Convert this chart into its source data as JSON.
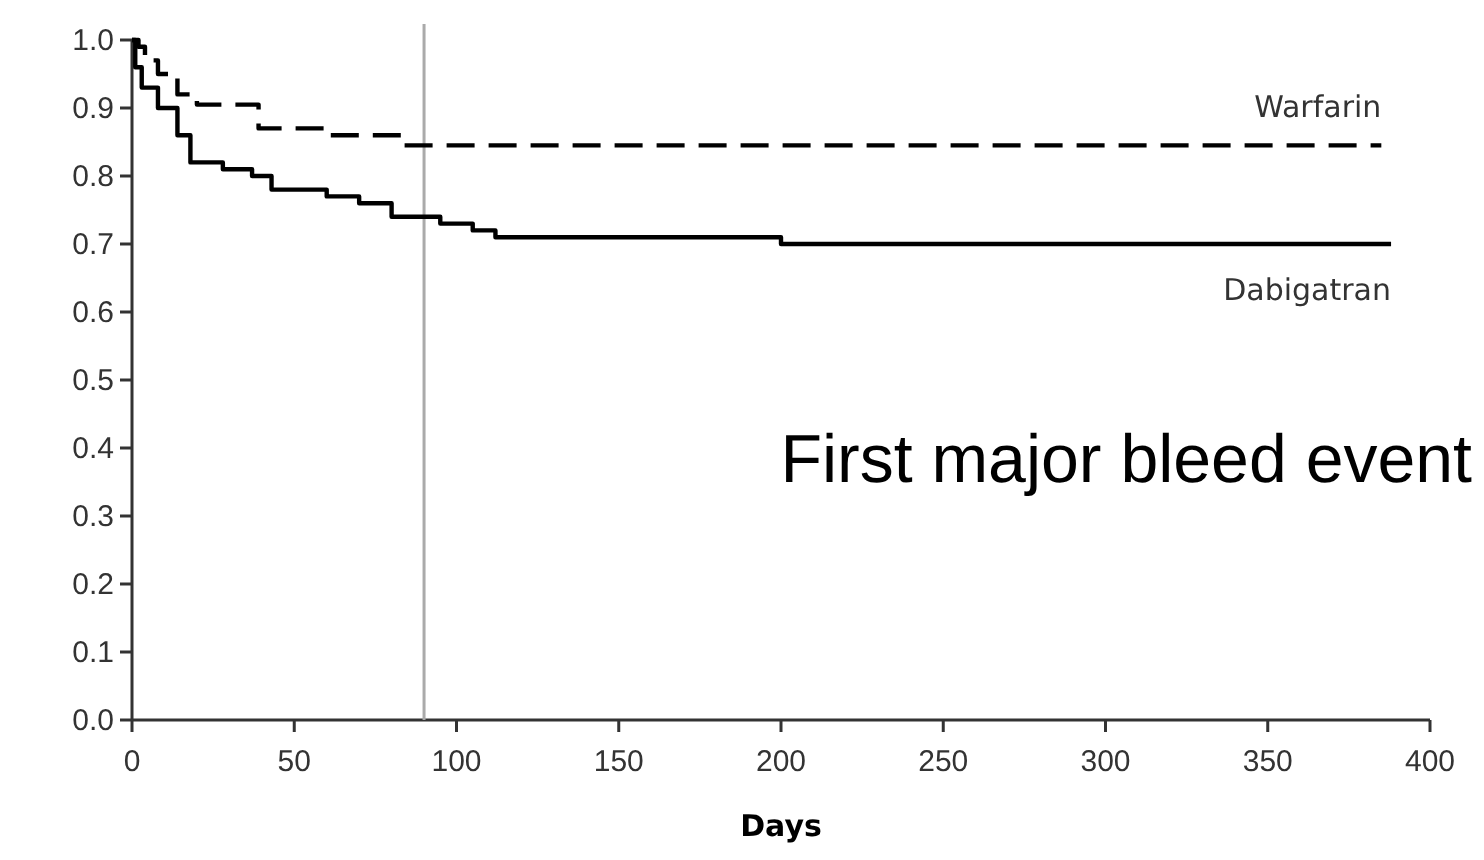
{
  "chart_data": {
    "type": "step",
    "xlabel": "Days",
    "xlim": [
      0,
      400
    ],
    "xticks": [
      0,
      50,
      100,
      150,
      200,
      250,
      300,
      350,
      400
    ],
    "ylim": [
      0,
      1.0
    ],
    "yticks": [
      {
        "value": 0,
        "label": "0.0"
      },
      0.1,
      0.2,
      0.3,
      0.4,
      0.5,
      0.6,
      0.7,
      0.8,
      0.9,
      {
        "value": 1,
        "label": "1.0"
      }
    ],
    "series": [
      {
        "name": "Warfarin",
        "color": "#000000",
        "line_style": "dashed",
        "x": [
          0,
          2,
          4,
          8,
          14,
          20,
          39,
          60,
          83,
          385
        ],
        "values": [
          1.0,
          0.99,
          0.97,
          0.95,
          0.92,
          0.905,
          0.87,
          0.86,
          0.845,
          0.845
        ]
      },
      {
        "name": "Dabigatran",
        "color": "#000000",
        "line_style": "solid",
        "x": [
          0,
          1,
          3,
          8,
          14,
          18,
          28,
          37,
          43,
          60,
          70,
          80,
          95,
          105,
          112,
          200,
          388
        ],
        "values": [
          1.0,
          0.96,
          0.93,
          0.9,
          0.86,
          0.82,
          0.81,
          0.8,
          0.78,
          0.77,
          0.76,
          0.74,
          0.73,
          0.72,
          0.71,
          0.7,
          0.7
        ]
      }
    ],
    "ref_lines": [
      {
        "axis": "x",
        "value": 90,
        "color": "#aaaaaa"
      }
    ],
    "annotations": [
      "First major bleed event"
    ],
    "grid": false
  }
}
